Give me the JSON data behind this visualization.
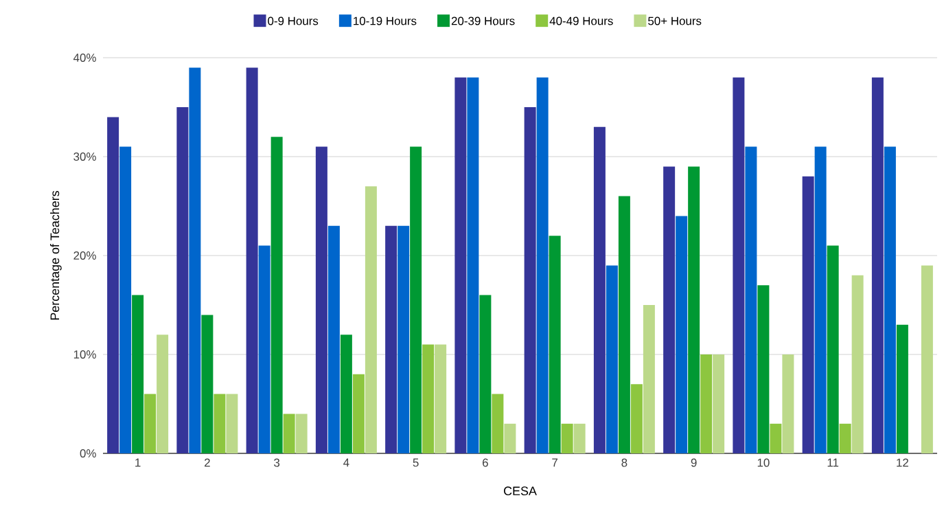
{
  "chart_data": {
    "type": "bar",
    "xlabel": "CESA",
    "ylabel": "Percentage of Teachers",
    "categories": [
      "1",
      "2",
      "3",
      "4",
      "5",
      "6",
      "7",
      "8",
      "9",
      "10",
      "11",
      "12"
    ],
    "series": [
      {
        "name": "0-9 Hours",
        "color": "#353599",
        "values": [
          34,
          35,
          39,
          31,
          23,
          38,
          35,
          33,
          29,
          38,
          28,
          38
        ]
      },
      {
        "name": "10-19 Hours",
        "color": "#0066cc",
        "values": [
          31,
          39,
          21,
          23,
          23,
          38,
          38,
          19,
          24,
          31,
          31,
          31
        ]
      },
      {
        "name": "20-39 Hours",
        "color": "#009933",
        "values": [
          16,
          14,
          32,
          12,
          31,
          16,
          22,
          26,
          29,
          17,
          21,
          13
        ]
      },
      {
        "name": "40-49 Hours",
        "color": "#8dc63f",
        "values": [
          6,
          6,
          4,
          8,
          11,
          6,
          3,
          7,
          10,
          3,
          3,
          0
        ]
      },
      {
        "name": "50+ Hours",
        "color": "#bcd98a",
        "values": [
          12,
          6,
          4,
          27,
          11,
          3,
          3,
          15,
          10,
          10,
          18,
          19
        ]
      }
    ],
    "ylim": [
      0,
      40
    ],
    "yticks": [
      {
        "value": 0,
        "label": "0%"
      },
      {
        "value": 10,
        "label": "10%"
      },
      {
        "value": 20,
        "label": "20%"
      },
      {
        "value": 30,
        "label": "30%"
      },
      {
        "value": 40,
        "label": "40%"
      }
    ],
    "grid": "y",
    "legend": "top"
  }
}
